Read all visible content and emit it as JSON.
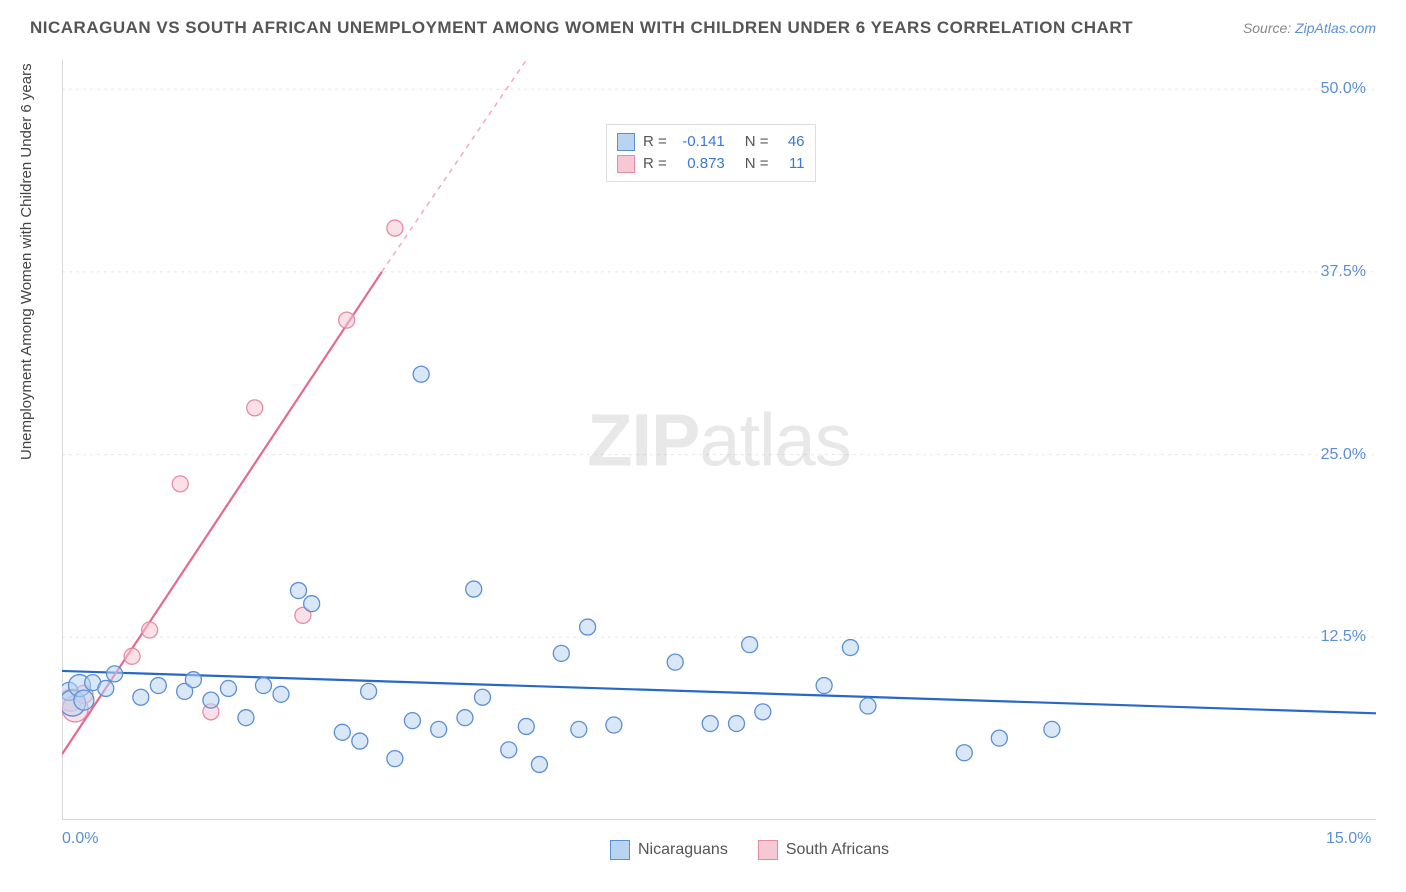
{
  "title": "NICARAGUAN VS SOUTH AFRICAN UNEMPLOYMENT AMONG WOMEN WITH CHILDREN UNDER 6 YEARS CORRELATION CHART",
  "source_label": "Source:",
  "source_name": "ZipAtlas.com",
  "ylabel": "Unemployment Among Women with Children Under 6 years",
  "watermark_zip": "ZIP",
  "watermark_atlas": "atlas",
  "chart": {
    "type": "scatter",
    "xlim": [
      0,
      15
    ],
    "ylim": [
      0,
      52
    ],
    "x_ticks": [
      {
        "val": 0,
        "label": "0.0%"
      },
      {
        "val": 15,
        "label": "15.0%"
      }
    ],
    "y_ticks": [
      {
        "val": 12.5,
        "label": "12.5%"
      },
      {
        "val": 25,
        "label": "25.0%"
      },
      {
        "val": 37.5,
        "label": "37.5%"
      },
      {
        "val": 50,
        "label": "50.0%"
      }
    ],
    "grid_color": "#e8e8e8",
    "axis_color": "#cccccc",
    "background": "#ffffff",
    "series": [
      {
        "name": "Nicaraguans",
        "fill": "#b9d4f0",
        "stroke": "#5b8fd6",
        "fill_opacity": 0.55,
        "r_value": "-0.141",
        "n_value": "46",
        "regression": {
          "x1": 0,
          "y1": 10.2,
          "x2": 15,
          "y2": 7.3,
          "color": "#2868c7",
          "width": 2.2
        },
        "points": [
          {
            "x": 0.08,
            "y": 8.8,
            "r": 9
          },
          {
            "x": 0.12,
            "y": 8.0,
            "r": 13
          },
          {
            "x": 0.2,
            "y": 9.2,
            "r": 11
          },
          {
            "x": 0.25,
            "y": 8.2,
            "r": 10
          },
          {
            "x": 0.35,
            "y": 9.4,
            "r": 8
          },
          {
            "x": 0.5,
            "y": 9.0,
            "r": 8
          },
          {
            "x": 0.6,
            "y": 10.0,
            "r": 8
          },
          {
            "x": 0.9,
            "y": 8.4,
            "r": 8
          },
          {
            "x": 1.1,
            "y": 9.2,
            "r": 8
          },
          {
            "x": 1.4,
            "y": 8.8,
            "r": 8
          },
          {
            "x": 1.5,
            "y": 9.6,
            "r": 8
          },
          {
            "x": 1.7,
            "y": 8.2,
            "r": 8
          },
          {
            "x": 1.9,
            "y": 9.0,
            "r": 8
          },
          {
            "x": 2.1,
            "y": 7.0,
            "r": 8
          },
          {
            "x": 2.3,
            "y": 9.2,
            "r": 8
          },
          {
            "x": 2.5,
            "y": 8.6,
            "r": 8
          },
          {
            "x": 2.7,
            "y": 15.7,
            "r": 8
          },
          {
            "x": 2.85,
            "y": 14.8,
            "r": 8
          },
          {
            "x": 3.2,
            "y": 6.0,
            "r": 8
          },
          {
            "x": 3.4,
            "y": 5.4,
            "r": 8
          },
          {
            "x": 3.5,
            "y": 8.8,
            "r": 8
          },
          {
            "x": 3.8,
            "y": 4.2,
            "r": 8
          },
          {
            "x": 4.0,
            "y": 6.8,
            "r": 8
          },
          {
            "x": 4.1,
            "y": 30.5,
            "r": 8
          },
          {
            "x": 4.3,
            "y": 6.2,
            "r": 8
          },
          {
            "x": 4.6,
            "y": 7.0,
            "r": 8
          },
          {
            "x": 4.7,
            "y": 15.8,
            "r": 8
          },
          {
            "x": 4.8,
            "y": 8.4,
            "r": 8
          },
          {
            "x": 5.1,
            "y": 4.8,
            "r": 8
          },
          {
            "x": 5.3,
            "y": 6.4,
            "r": 8
          },
          {
            "x": 5.45,
            "y": 3.8,
            "r": 8
          },
          {
            "x": 5.7,
            "y": 11.4,
            "r": 8
          },
          {
            "x": 5.9,
            "y": 6.2,
            "r": 8
          },
          {
            "x": 6.0,
            "y": 13.2,
            "r": 8
          },
          {
            "x": 6.3,
            "y": 6.5,
            "r": 8
          },
          {
            "x": 7.0,
            "y": 10.8,
            "r": 8
          },
          {
            "x": 7.4,
            "y": 6.6,
            "r": 8
          },
          {
            "x": 7.7,
            "y": 6.6,
            "r": 8
          },
          {
            "x": 7.85,
            "y": 12.0,
            "r": 8
          },
          {
            "x": 8.0,
            "y": 7.4,
            "r": 8
          },
          {
            "x": 8.7,
            "y": 9.2,
            "r": 8
          },
          {
            "x": 9.0,
            "y": 11.8,
            "r": 8
          },
          {
            "x": 9.2,
            "y": 7.8,
            "r": 8
          },
          {
            "x": 10.3,
            "y": 4.6,
            "r": 8
          },
          {
            "x": 10.7,
            "y": 5.6,
            "r": 8
          },
          {
            "x": 11.3,
            "y": 6.2,
            "r": 8
          }
        ]
      },
      {
        "name": "South Africans",
        "fill": "#f6c8d4",
        "stroke": "#e78aa5",
        "fill_opacity": 0.55,
        "r_value": "0.873",
        "n_value": "11",
        "regression": {
          "x1": 0,
          "y1": 4.5,
          "x2": 3.65,
          "y2": 37.5,
          "color": "#e56a8c",
          "width": 2.2,
          "dash_ext": {
            "x2": 5.3,
            "y2": 52
          }
        },
        "points": [
          {
            "x": 0.1,
            "y": 8.2,
            "r": 11
          },
          {
            "x": 0.15,
            "y": 7.6,
            "r": 13
          },
          {
            "x": 0.25,
            "y": 8.6,
            "r": 9
          },
          {
            "x": 0.8,
            "y": 11.2,
            "r": 8
          },
          {
            "x": 1.0,
            "y": 13.0,
            "r": 8
          },
          {
            "x": 1.7,
            "y": 7.4,
            "r": 8
          },
          {
            "x": 1.35,
            "y": 23.0,
            "r": 8
          },
          {
            "x": 2.2,
            "y": 28.2,
            "r": 8
          },
          {
            "x": 2.75,
            "y": 14.0,
            "r": 8
          },
          {
            "x": 3.25,
            "y": 34.2,
            "r": 8
          },
          {
            "x": 3.8,
            "y": 40.5,
            "r": 8
          }
        ]
      }
    ]
  },
  "legend": {
    "series1_label": "Nicaraguans",
    "series2_label": "South Africans"
  },
  "stats": {
    "r_label": "R =",
    "n_label": "N ="
  }
}
